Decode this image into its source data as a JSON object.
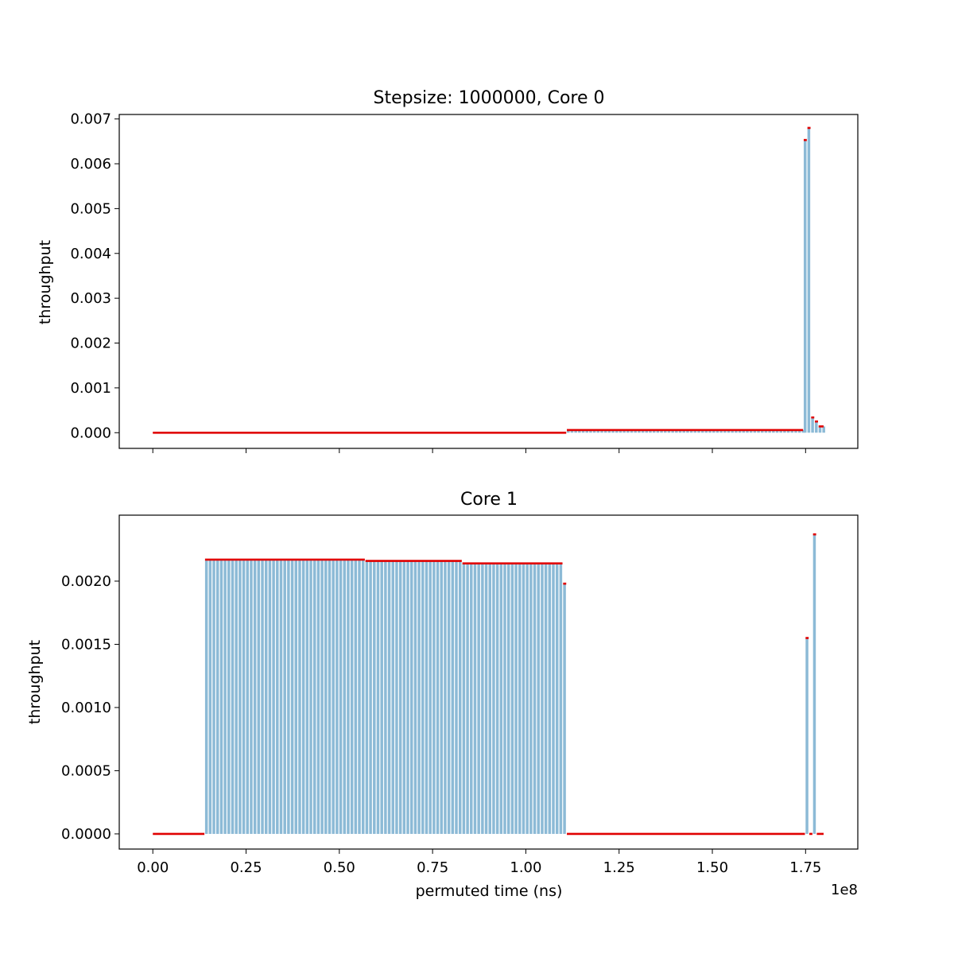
{
  "chart_data": [
    {
      "type": "bar",
      "title": "Stepsize: 1000000, Core 0",
      "xlabel": "",
      "ylabel": "throughput",
      "xlim": [
        -9000000,
        189000000
      ],
      "ylim": [
        -0.00035,
        0.0071
      ],
      "xticks": [
        0,
        25000000,
        50000000,
        75000000,
        100000000,
        125000000,
        150000000,
        175000000
      ],
      "xtick_labels": [
        "",
        "",
        "",
        "",
        "",
        "",
        "",
        ""
      ],
      "yticks": [
        0.0,
        0.001,
        0.002,
        0.003,
        0.004,
        0.005,
        0.006,
        0.007
      ],
      "ytick_labels": [
        "0.000",
        "0.001",
        "0.002",
        "0.003",
        "0.004",
        "0.005",
        "0.006",
        "0.007"
      ],
      "bar_width": 1000000,
      "segments": [
        {
          "x_start": 0,
          "x_end": 111000000,
          "value": 0.0
        },
        {
          "x_start": 111000000,
          "x_end": 174500000,
          "value": 6e-05
        },
        {
          "x_start": 174500000,
          "x_end": 175500000,
          "value": 0.00653
        },
        {
          "x_start": 175500000,
          "x_end": 176500000,
          "value": 0.0068
        },
        {
          "x_start": 176500000,
          "x_end": 177500000,
          "value": 0.00034
        },
        {
          "x_start": 177500000,
          "x_end": 178500000,
          "value": 0.00025
        },
        {
          "x_start": 178500000,
          "x_end": 180000000,
          "value": 0.00014
        }
      ]
    },
    {
      "type": "bar",
      "title": "Core 1",
      "xlabel": "permuted time (ns)",
      "ylabel": "throughput",
      "x_offset_label": "1e8",
      "xlim": [
        -9000000,
        189000000
      ],
      "ylim": [
        -0.00012,
        0.002522
      ],
      "xticks": [
        0,
        25000000,
        50000000,
        75000000,
        100000000,
        125000000,
        150000000,
        175000000
      ],
      "xtick_labels": [
        "0.00",
        "0.25",
        "0.50",
        "0.75",
        "1.00",
        "1.25",
        "1.50",
        "1.75"
      ],
      "yticks": [
        0.0,
        0.0005,
        0.001,
        0.0015,
        0.002
      ],
      "ytick_labels": [
        "0.0000",
        "0.0005",
        "0.0010",
        "0.0015",
        "0.0020"
      ],
      "bar_width": 1000000,
      "segments": [
        {
          "x_start": 0,
          "x_end": 14000000,
          "value": 0.0
        },
        {
          "x_start": 14000000,
          "x_end": 57000000,
          "value": 0.00217
        },
        {
          "x_start": 57000000,
          "x_end": 83000000,
          "value": 0.00216
        },
        {
          "x_start": 83000000,
          "x_end": 110000000,
          "value": 0.00214
        },
        {
          "x_start": 110000000,
          "x_end": 111000000,
          "value": 0.00198
        },
        {
          "x_start": 111000000,
          "x_end": 175000000,
          "value": 0.0
        },
        {
          "x_start": 175000000,
          "x_end": 176000000,
          "value": 0.00155
        },
        {
          "x_start": 176000000,
          "x_end": 177000000,
          "value": 0.0
        },
        {
          "x_start": 177000000,
          "x_end": 178000000,
          "value": 0.00237
        },
        {
          "x_start": 178000000,
          "x_end": 180000000,
          "value": 0.0
        }
      ]
    }
  ],
  "colors": {
    "bar": "#8cbad6",
    "step_line": "#e00000",
    "axes": "#000000"
  }
}
